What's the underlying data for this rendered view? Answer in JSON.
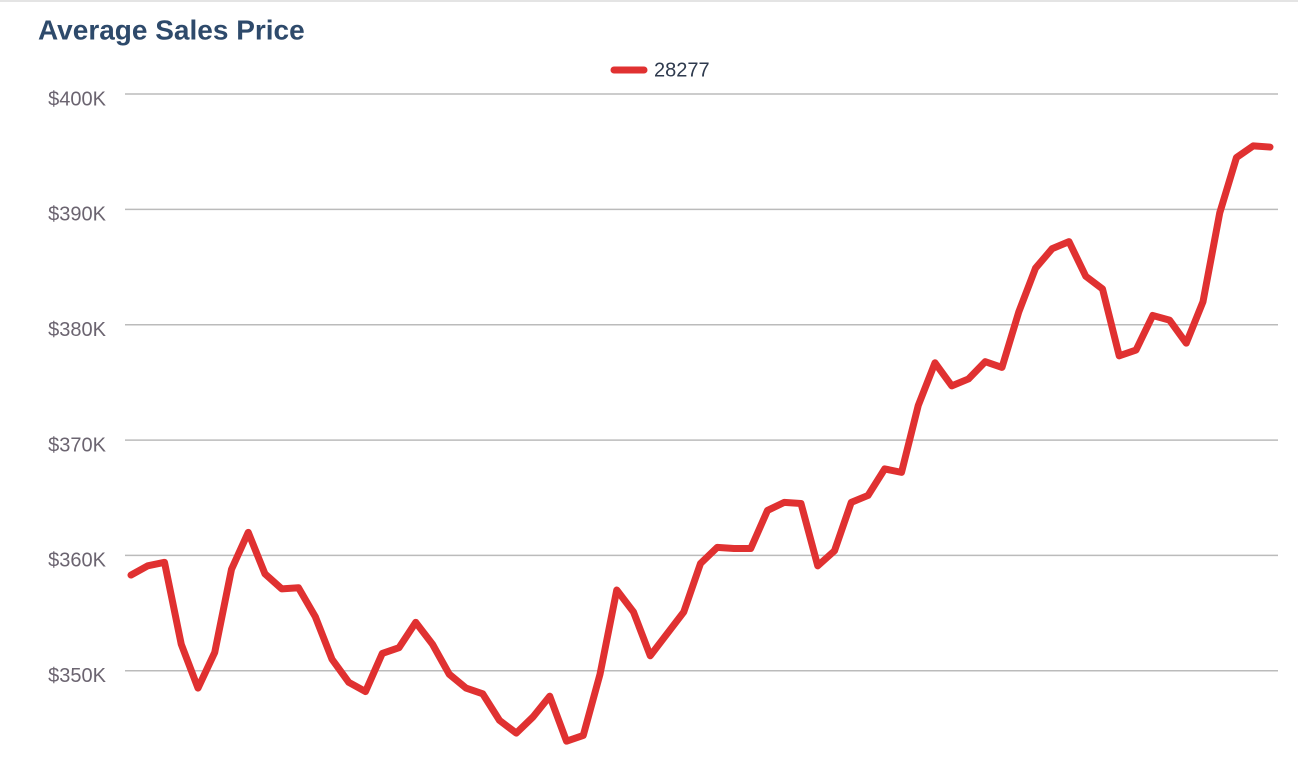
{
  "chart_data": {
    "type": "line",
    "title": "Average Sales Price",
    "series": [
      {
        "name": "28277",
        "color": "#e03131",
        "values": [
          358300,
          359100,
          359400,
          352300,
          348500,
          351600,
          358800,
          362000,
          358400,
          357100,
          357200,
          354700,
          351000,
          349000,
          348200,
          351500,
          352000,
          354200,
          352300,
          349700,
          348500,
          348000,
          345700,
          344600,
          346000,
          347800,
          343900,
          344400,
          349700,
          357000,
          355100,
          351300,
          353200,
          355100,
          359300,
          360700,
          360600,
          360600,
          363900,
          364600,
          364500,
          359100,
          360400,
          364600,
          365200,
          367500,
          367200,
          373000,
          376700,
          374700,
          375300,
          376800,
          376300,
          381100,
          384900,
          386600,
          387200,
          384200,
          383100,
          377300,
          377800,
          380800,
          380400,
          378400,
          382000,
          389700,
          394500,
          395500,
          395400
        ]
      }
    ],
    "ylim": [
      341400,
      400000
    ],
    "yticks": [
      {
        "value": 350000,
        "label": "$350K"
      },
      {
        "value": 360000,
        "label": "$360K"
      },
      {
        "value": 370000,
        "label": "$370K"
      },
      {
        "value": 380000,
        "label": "$380K"
      },
      {
        "value": 390000,
        "label": "$390K"
      },
      {
        "value": 400000,
        "label": "$400K"
      }
    ],
    "grid": true,
    "legend": "top"
  }
}
